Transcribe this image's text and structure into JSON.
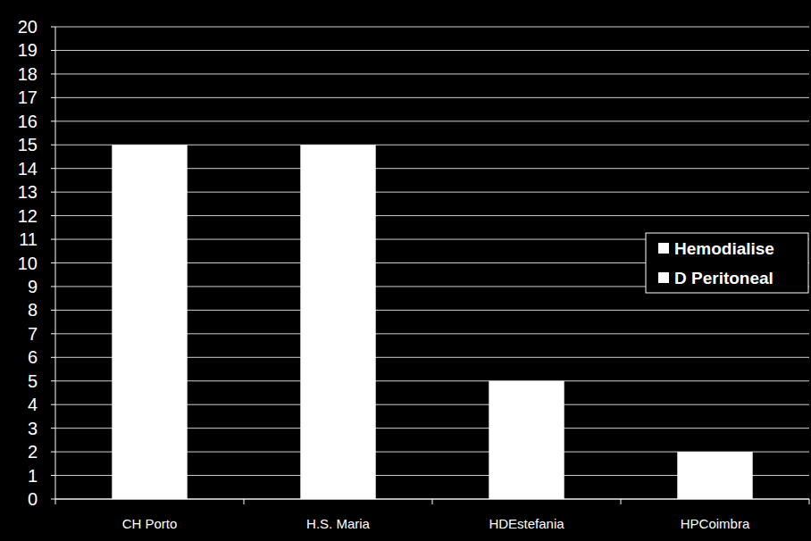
{
  "chart_data": {
    "type": "bar",
    "stacked": true,
    "grid": true,
    "legend": "right",
    "categories": [
      "CH Porto",
      "H.S. Maria",
      "HDEstefania",
      "HPCoimbra"
    ],
    "series": [
      {
        "name": "Hemodialise",
        "color": "#ffffff",
        "values": [
          15,
          15,
          5,
          2
        ]
      },
      {
        "name": "D Peritoneal",
        "color": "#ffffff",
        "values": [
          0,
          0,
          0,
          0
        ]
      }
    ],
    "ylim": [
      0,
      20
    ],
    "yticks": [
      0,
      1,
      2,
      3,
      4,
      5,
      6,
      7,
      8,
      9,
      10,
      11,
      12,
      13,
      14,
      15,
      16,
      17,
      18,
      19,
      20
    ]
  }
}
